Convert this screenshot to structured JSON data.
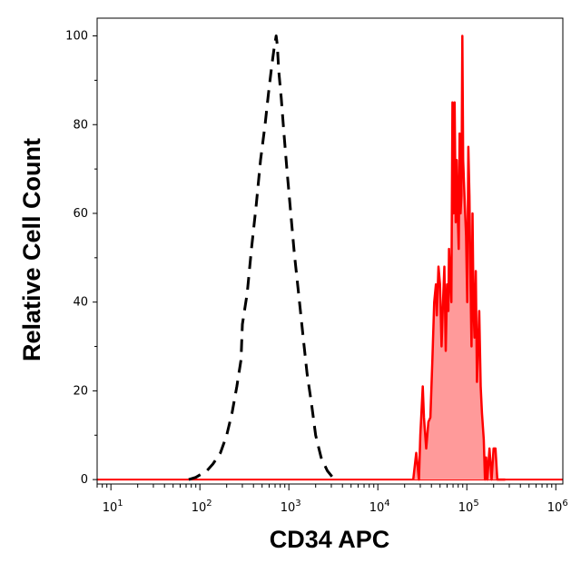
{
  "chart_data": {
    "type": "area",
    "xlabel": "CD34 APC",
    "ylabel": "Relative Cell Count",
    "xscale": "log",
    "xlim": [
      7,
      1200000
    ],
    "ylim": [
      -1,
      104
    ],
    "grid": false,
    "x_ticks": [
      {
        "base": "10",
        "exp": "1",
        "value": 10
      },
      {
        "base": "10",
        "exp": "2",
        "value": 100
      },
      {
        "base": "10",
        "exp": "3",
        "value": 1000
      },
      {
        "base": "10",
        "exp": "4",
        "value": 10000
      },
      {
        "base": "10",
        "exp": "5",
        "value": 100000
      },
      {
        "base": "10",
        "exp": "6",
        "value": 1000000
      }
    ],
    "y_ticks": [
      "0",
      "20",
      "40",
      "60",
      "80",
      "100"
    ],
    "colors": {
      "control_line": "#000000",
      "stained_line": "#ff0000",
      "stained_fill": "#ff9a9a",
      "baseline": "#ff0000"
    },
    "series": [
      {
        "style": "dashed",
        "color": "#000000",
        "fill": "none",
        "x": [
          75,
          90,
          120,
          140,
          170,
          200,
          230,
          260,
          290,
          300,
          340,
          380,
          430,
          480,
          540,
          590,
          640,
          680,
          720,
          740,
          770,
          820,
          880,
          950,
          1050,
          1150,
          1300,
          1450,
          1600,
          1800,
          2000,
          2300,
          2700,
          3100,
          3500
        ],
        "values": [
          0,
          0.5,
          2,
          3.5,
          6,
          10,
          15,
          21,
          27,
          35,
          42,
          52,
          62,
          72,
          80,
          87,
          93,
          97,
          100,
          98,
          92,
          86,
          78,
          70,
          60,
          51,
          41,
          32,
          24,
          17,
          10,
          5,
          2,
          0.5,
          0
        ]
      },
      {
        "style": "solid",
        "color": "#ff0000",
        "fill": "#ff9a9a",
        "x": [
          25000,
          27000,
          29000,
          30000,
          32000,
          33000,
          35000,
          37000,
          39000,
          41000,
          43000,
          45000,
          46000,
          48000,
          50000,
          52000,
          54000,
          56000,
          58000,
          60000,
          62000,
          63000,
          65000,
          67000,
          69000,
          71000,
          73000,
          75000,
          77000,
          79000,
          81000,
          83000,
          85000,
          87000,
          89000,
          91000,
          93000,
          95000,
          98000,
          101000,
          104000,
          107000,
          110000,
          113000,
          116000,
          119000,
          122000,
          126000,
          130000,
          134000,
          138000,
          143000,
          148000,
          155000,
          160000,
          165000,
          170000,
          180000,
          190000,
          200000,
          210000,
          220000,
          230000,
          240000,
          250000,
          270000
        ],
        "values": [
          0,
          6,
          0,
          10,
          21,
          14,
          7,
          13,
          14,
          27,
          40,
          44,
          37,
          48,
          44,
          30,
          40,
          48,
          29,
          44,
          38,
          52,
          45,
          40,
          85,
          60,
          85,
          58,
          72,
          60,
          52,
          78,
          60,
          64,
          100,
          72,
          67,
          62,
          55,
          40,
          75,
          64,
          44,
          30,
          60,
          39,
          32,
          47,
          22,
          30,
          38,
          21,
          15,
          9,
          0,
          5,
          0,
          7,
          0,
          7,
          7,
          0,
          0,
          0,
          0,
          0
        ]
      }
    ]
  }
}
